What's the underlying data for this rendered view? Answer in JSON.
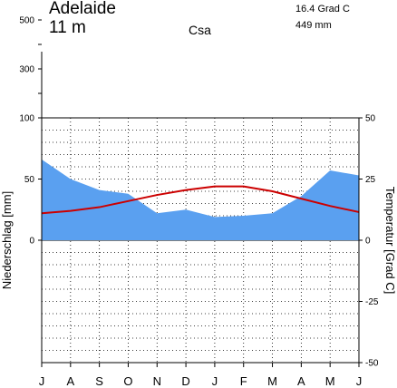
{
  "header": {
    "station": "Adelaide",
    "elevation": "11 m",
    "climate_class": "Csa",
    "mean_temperature": "16.4 Grad C",
    "annual_precipitation": "449 mm"
  },
  "chart_data": {
    "type": "climate-diagram",
    "title": "Adelaide",
    "months": [
      "J",
      "A",
      "S",
      "O",
      "N",
      "D",
      "J",
      "F",
      "M",
      "A",
      "M",
      "J"
    ],
    "precipitation": {
      "name": "Niederschlag",
      "values": [
        66,
        50,
        41,
        38,
        22,
        25,
        19,
        20,
        22,
        36,
        57,
        53
      ],
      "color": "#5aa0f0"
    },
    "temperature": {
      "name": "Temperatur",
      "values": [
        11,
        12,
        13.5,
        16,
        18.5,
        20.5,
        22,
        22,
        20,
        17,
        14,
        11.5
      ],
      "color": "#cc0000"
    },
    "left_axis": {
      "label": "Niederschlag [mm]",
      "ticks": [
        0,
        50,
        100
      ],
      "compressed_ticks": [
        300,
        500
      ]
    },
    "right_axis": {
      "label": "Temperatur [Grad C]",
      "ticks": [
        -50,
        -25,
        0,
        25,
        50
      ],
      "ylim": [
        -50,
        50
      ]
    },
    "grid": true
  }
}
